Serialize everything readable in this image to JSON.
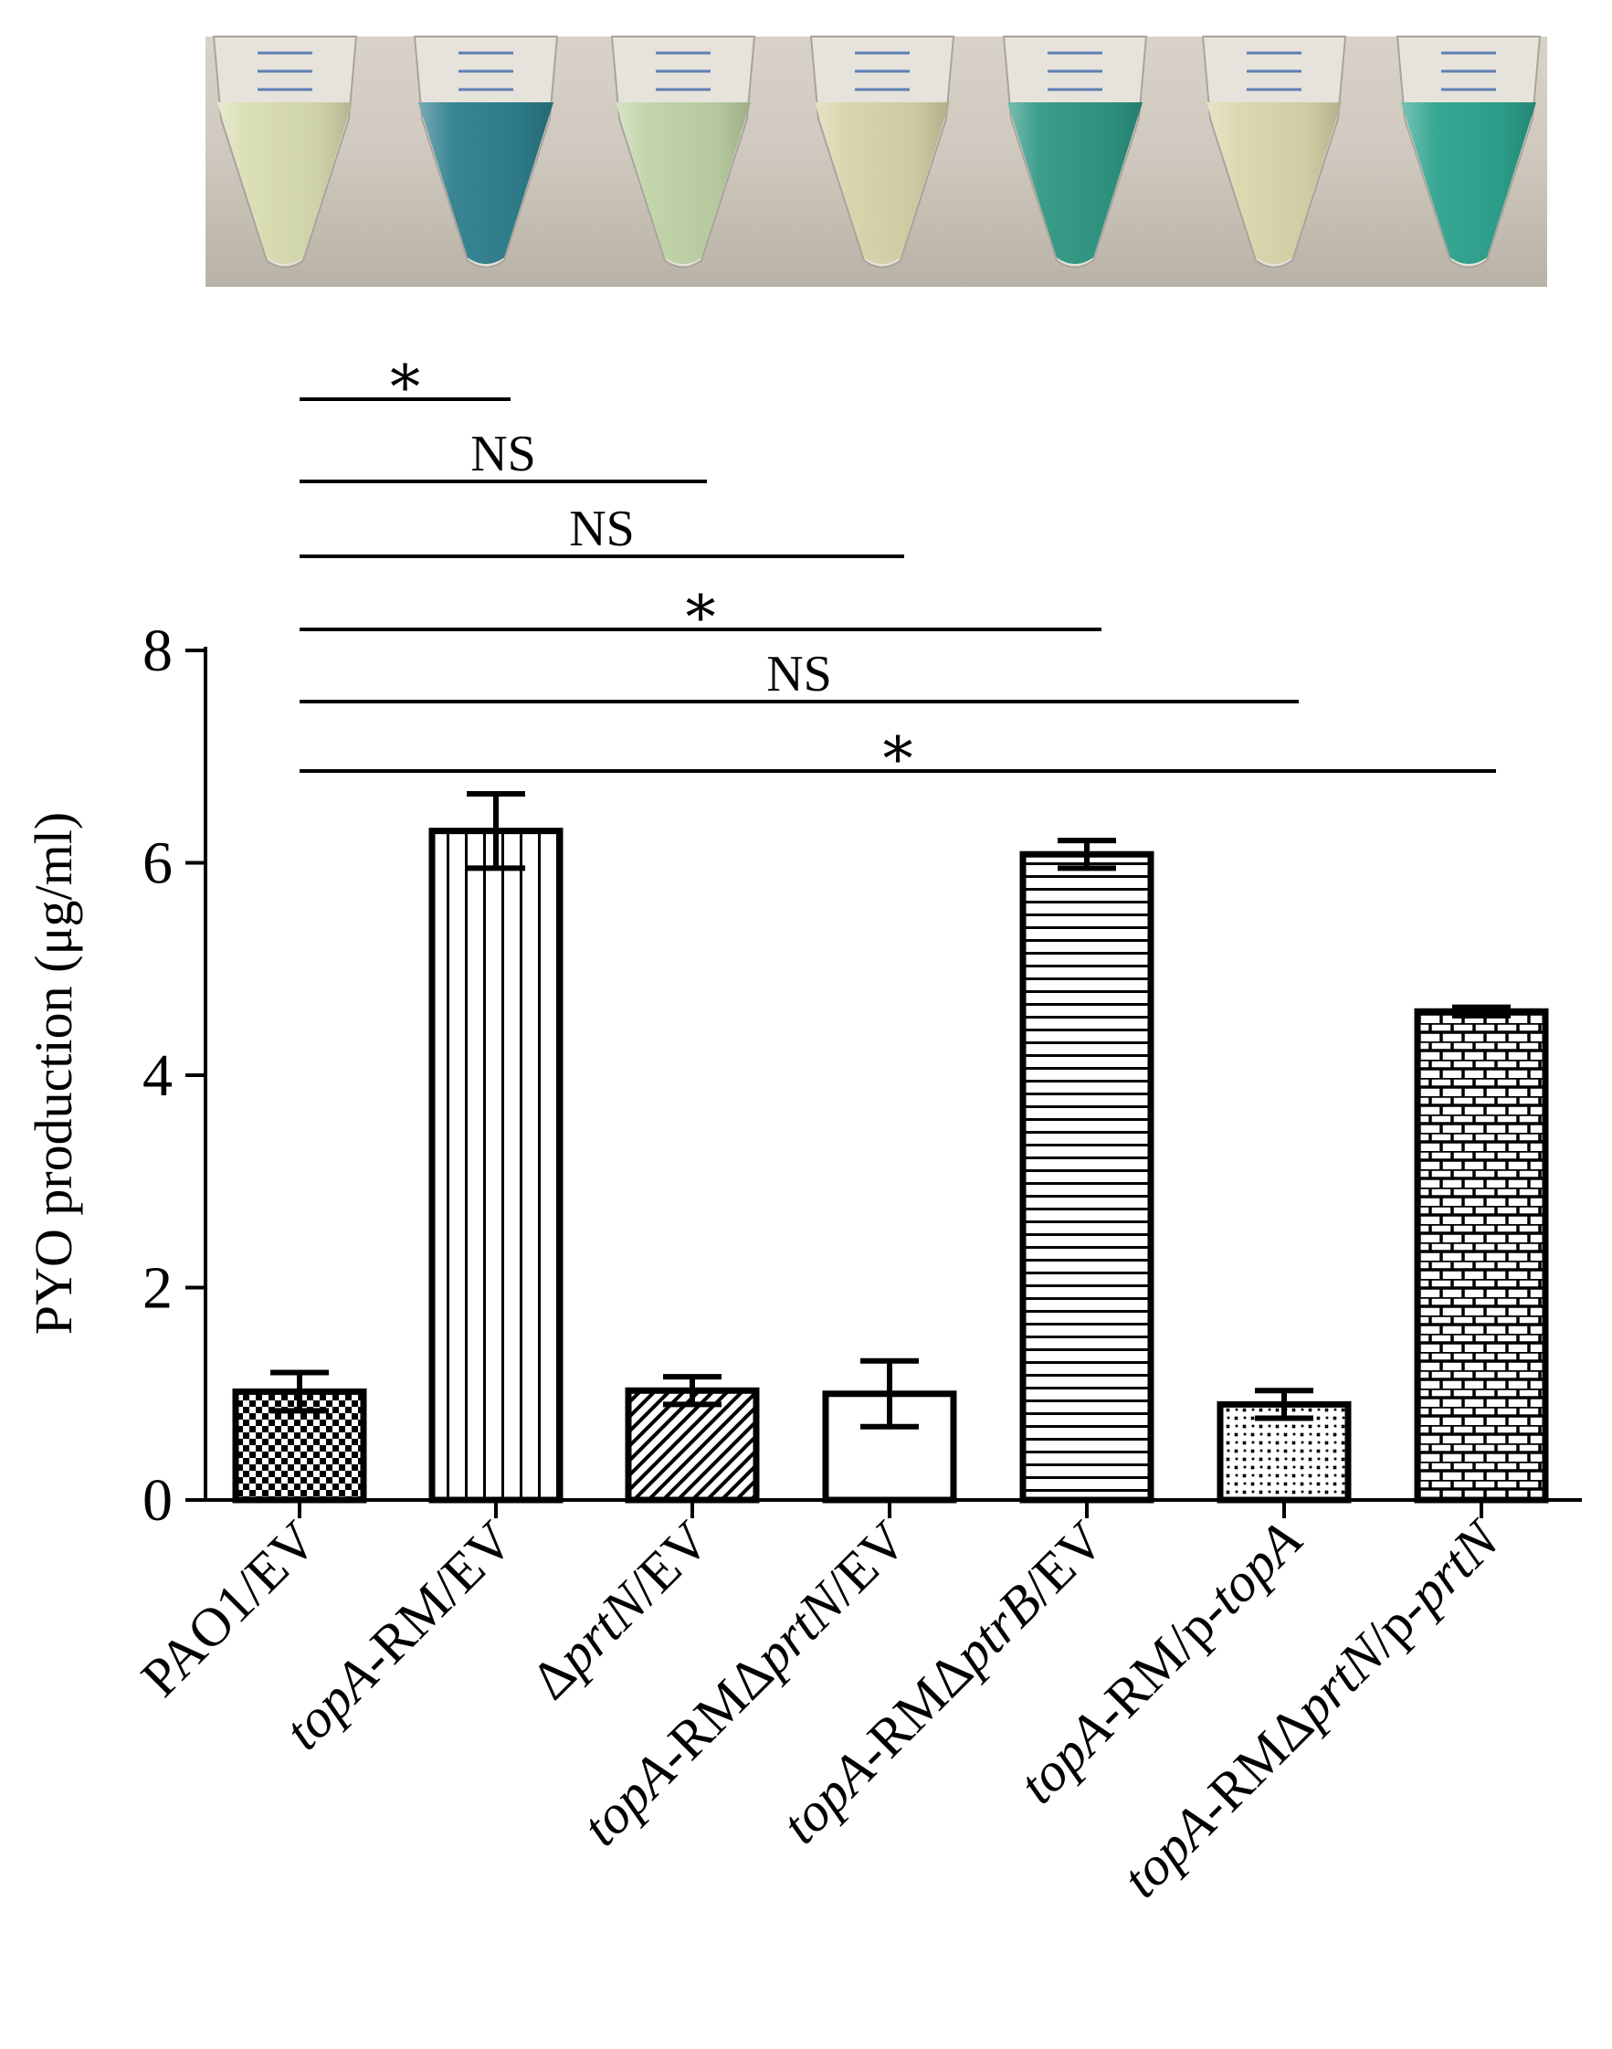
{
  "photo": {
    "description_tubes": 7,
    "tube_colors": [
      "#d9ddb1",
      "#2f7f8e",
      "#bfd3a6",
      "#d8d3a9",
      "#2f9884",
      "#dad6ab",
      "#2ea38e"
    ]
  },
  "chart_data": {
    "type": "bar",
    "title": "",
    "xlabel": "",
    "ylabel": "PYO production (μg/ml)",
    "ylim": [
      0,
      8
    ],
    "yticks": [
      "0",
      "2",
      "4",
      "6",
      "8"
    ],
    "categories": [
      [
        {
          "t": "PAO1/EV",
          "i": false
        }
      ],
      [
        {
          "t": "topA",
          "i": true
        },
        {
          "t": "-RM/EV",
          "i": false
        }
      ],
      [
        {
          "t": "Δ",
          "i": false
        },
        {
          "t": "prtN",
          "i": true
        },
        {
          "t": "/EV",
          "i": false
        }
      ],
      [
        {
          "t": "topA",
          "i": true
        },
        {
          "t": "-RMΔ",
          "i": false
        },
        {
          "t": "prtN",
          "i": true
        },
        {
          "t": "/EV",
          "i": false
        }
      ],
      [
        {
          "t": "topA",
          "i": true
        },
        {
          "t": "-RMΔ",
          "i": false
        },
        {
          "t": "ptrB",
          "i": true
        },
        {
          "t": "/EV",
          "i": false
        }
      ],
      [
        {
          "t": "topA",
          "i": true
        },
        {
          "t": "-RM/p-",
          "i": false
        },
        {
          "t": "topA",
          "i": true
        }
      ],
      [
        {
          "t": "topA",
          "i": true
        },
        {
          "t": "-RMΔ",
          "i": false
        },
        {
          "t": "prtN",
          "i": true
        },
        {
          "t": "/p-",
          "i": false
        },
        {
          "t": "prtN",
          "i": true
        }
      ]
    ],
    "values": [
      1.02,
      6.3,
      1.03,
      1.0,
      6.08,
      0.9,
      4.6
    ],
    "errors": [
      0.18,
      0.35,
      0.13,
      0.31,
      0.13,
      0.13,
      0.04
    ],
    "patterns": [
      "checker",
      "vertical",
      "diagonal",
      "none",
      "horizontal",
      "dots",
      "brick"
    ],
    "comparisons": [
      {
        "from": 0,
        "to": 1,
        "label": "*"
      },
      {
        "from": 0,
        "to": 2,
        "label": "NS"
      },
      {
        "from": 0,
        "to": 3,
        "label": "NS"
      },
      {
        "from": 0,
        "to": 4,
        "label": "*"
      },
      {
        "from": 0,
        "to": 5,
        "label": "NS"
      },
      {
        "from": 0,
        "to": 6,
        "label": "*"
      }
    ]
  }
}
